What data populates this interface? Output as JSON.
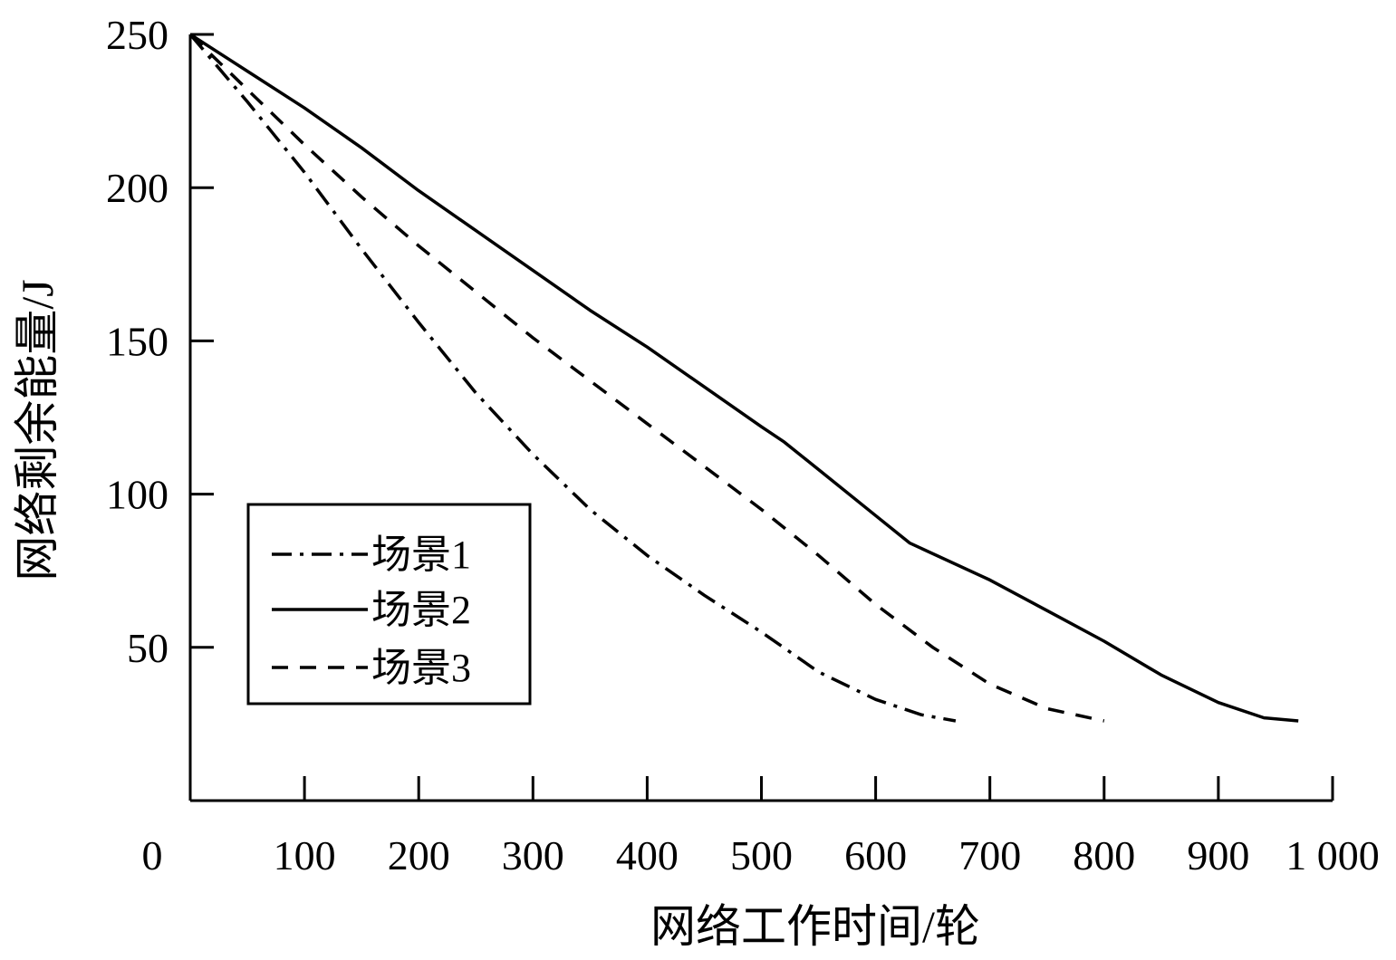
{
  "chart_data": {
    "type": "line",
    "xlabel": "网络工作时间/轮",
    "ylabel": "网络剩余能量/J",
    "xlim": [
      0,
      1000
    ],
    "ylim": [
      0,
      250
    ],
    "x_origin_label": "0",
    "x_ticks": [
      100,
      200,
      300,
      400,
      500,
      600,
      700,
      800,
      900,
      1000
    ],
    "x_tick_labels": [
      "100",
      "200",
      "300",
      "400",
      "500",
      "600",
      "700",
      "800",
      "900",
      "1 000"
    ],
    "y_ticks": [
      50,
      100,
      150,
      200,
      250
    ],
    "y_tick_labels": [
      "50",
      "100",
      "150",
      "200",
      "250"
    ],
    "grid": false,
    "legend_position": "lower-left",
    "series": [
      {
        "name": "场景1",
        "style": "dashdot",
        "x": [
          0,
          50,
          100,
          150,
          200,
          250,
          300,
          350,
          400,
          450,
          500,
          550,
          600,
          640,
          670
        ],
        "y": [
          250,
          228,
          205,
          180,
          156,
          133,
          113,
          95,
          80,
          67,
          55,
          42,
          33,
          28,
          26
        ]
      },
      {
        "name": "场景2",
        "style": "solid",
        "x": [
          0,
          50,
          100,
          150,
          200,
          250,
          300,
          350,
          400,
          450,
          500,
          520,
          550,
          600,
          630,
          700,
          750,
          800,
          850,
          900,
          940,
          970
        ],
        "y": [
          250,
          238,
          226,
          213,
          199,
          186,
          173,
          160,
          148,
          135,
          122,
          117,
          108,
          93,
          84,
          72,
          62,
          52,
          41,
          32,
          27,
          26
        ]
      },
      {
        "name": "场景3",
        "style": "dashed",
        "x": [
          0,
          50,
          100,
          150,
          200,
          250,
          300,
          350,
          400,
          450,
          500,
          550,
          600,
          650,
          700,
          750,
          800
        ],
        "y": [
          250,
          232,
          214,
          197,
          181,
          166,
          151,
          137,
          123,
          109,
          95,
          80,
          64,
          50,
          38,
          30,
          26
        ]
      }
    ]
  }
}
